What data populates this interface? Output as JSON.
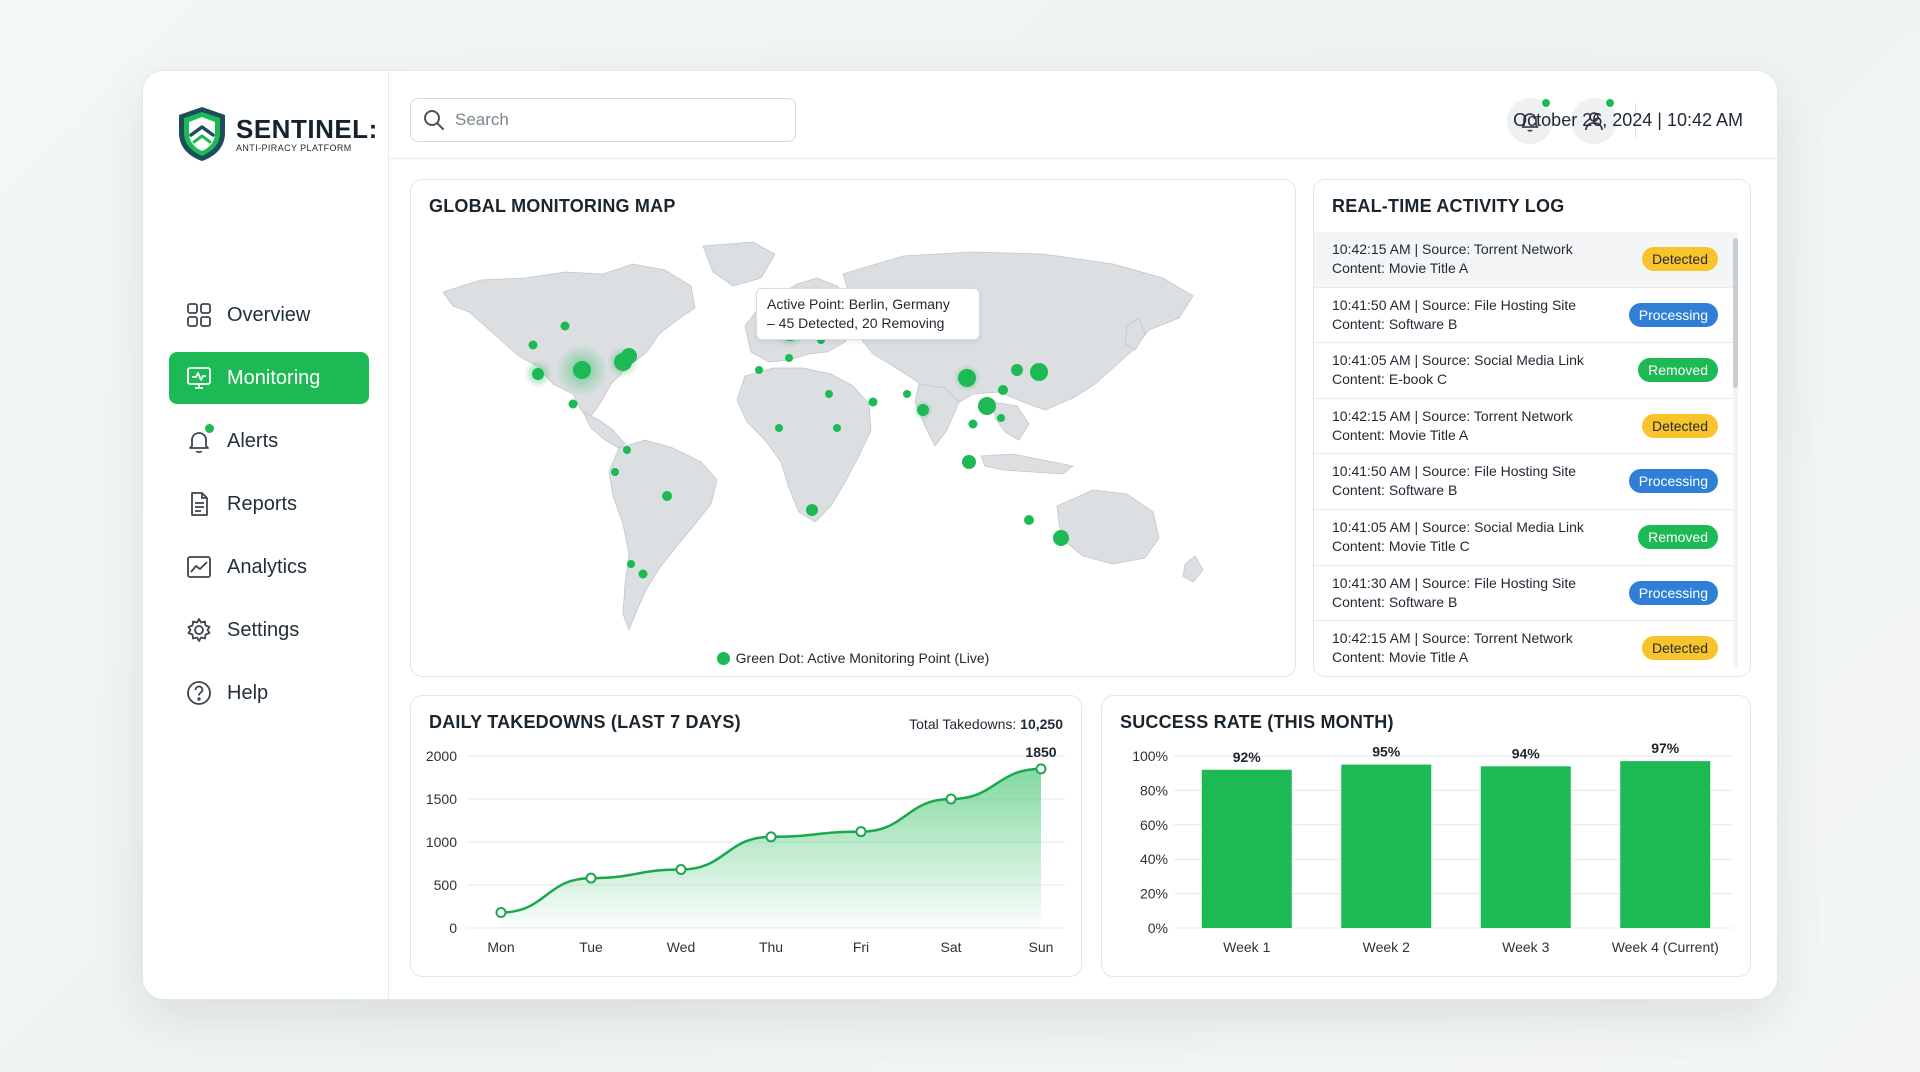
{
  "app": {
    "title": "SENTINEL:",
    "subtitle": "ANTI-PIRACY PLATFORM"
  },
  "sidebar": {
    "items": [
      {
        "label": "Overview",
        "icon": "grid-icon",
        "active": false
      },
      {
        "label": "Monitoring",
        "icon": "monitor-icon",
        "active": true
      },
      {
        "label": "Alerts",
        "icon": "bell-icon",
        "active": false,
        "notification": true
      },
      {
        "label": "Reports",
        "icon": "document-icon",
        "active": false
      },
      {
        "label": "Analytics",
        "icon": "chart-icon",
        "active": false
      },
      {
        "label": "Settings",
        "icon": "gear-icon",
        "active": false
      },
      {
        "label": "Help",
        "icon": "help-icon",
        "active": false
      }
    ]
  },
  "topbar": {
    "search_placeholder": "Search",
    "datetime": "October 26, 2024 | 10:42 AM"
  },
  "map": {
    "title": "GLOBAL MONITORING MAP",
    "tooltip_line1": "Active Point: Berlin, Germany",
    "tooltip_line2": "– 45 Detected, 20 Removing",
    "legend": "Green Dot: Active Monitoring Point (Live)"
  },
  "activity_log": {
    "title": "REAL-TIME ACTIVITY LOG",
    "entries": [
      {
        "line1": "10:42:15 AM | Source: Torrent Network",
        "line2": "Content: Movie Title A",
        "status": "Detected"
      },
      {
        "line1": "10:41:50 AM | Source: File Hosting Site",
        "line2": "Content: Software B",
        "status": "Processing"
      },
      {
        "line1": "10:41:05 AM | Source: Social Media Link",
        "line2": "Content: E-book C",
        "status": "Removed"
      },
      {
        "line1": "10:42:15 AM | Source: Torrent Network",
        "line2": "Content: Movie Title A",
        "status": "Detected"
      },
      {
        "line1": "10:41:50 AM | Source: File Hosting Site",
        "line2": "Content: Software B",
        "status": "Processing"
      },
      {
        "line1": "10:41:05 AM | Source: Social Media Link",
        "line2": "Content: Movie Title C",
        "status": "Removed"
      },
      {
        "line1": "10:41:30 AM | Source: File Hosting Site",
        "line2": "Content: Software B",
        "status": "Processing"
      },
      {
        "line1": "10:42:15 AM | Source: Torrent Network",
        "line2": "Content: Movie Title A",
        "status": "Detected"
      }
    ],
    "status_colors": {
      "Detected": "#f7c52b",
      "Processing": "#2f7fd7",
      "Removed": "#1db954"
    }
  },
  "daily_takedowns": {
    "total_label": "Total Takedowns:",
    "total_value": "10,250"
  },
  "success_rate": {},
  "colors": {
    "accent": "#1db954"
  },
  "chart_data": [
    {
      "type": "line",
      "title": "DAILY TAKEDOWNS (LAST 7 DAYS)",
      "categories": [
        "Mon",
        "Tue",
        "Wed",
        "Thu",
        "Fri",
        "Sat",
        "Sun"
      ],
      "values": [
        180,
        580,
        680,
        1060,
        1120,
        1500,
        1850
      ],
      "annotated_label": "1850",
      "ylim": [
        0,
        2000
      ],
      "yticks": [
        0,
        500,
        1000,
        1500,
        2000
      ],
      "grid": true,
      "fill": "area-gradient"
    },
    {
      "type": "bar",
      "title": "SUCCESS RATE (THIS MONTH)",
      "categories": [
        "Week 1",
        "Week 2",
        "Week 3",
        "Week 4 (Current)"
      ],
      "values": [
        92,
        95,
        94,
        97
      ],
      "value_labels": [
        "92%",
        "95%",
        "94%",
        "97%"
      ],
      "ylim": [
        0,
        100
      ],
      "yticks": [
        "0%",
        "20%",
        "40%",
        "60%",
        "80%",
        "100%"
      ],
      "grid": true
    }
  ]
}
